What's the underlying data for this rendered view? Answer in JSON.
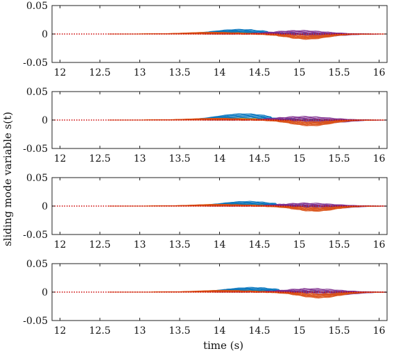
{
  "chart_data": {
    "type": "line",
    "layout": "4 stacked subplots sharing the same axes",
    "xlabel": "time (s)",
    "ylabel": "sliding mode variable s(t)",
    "xlim": [
      11.9,
      16.1
    ],
    "ylim": [
      -0.05,
      0.05
    ],
    "xticks": [
      12,
      12.5,
      13,
      13.5,
      14,
      14.5,
      15,
      15.5,
      16
    ],
    "xtick_labels": [
      "12",
      "12.5",
      "13",
      "13.5",
      "14",
      "14.5",
      "15",
      "15.5",
      "16"
    ],
    "yticks": [
      0.05,
      0,
      -0.05
    ],
    "ytick_labels": [
      "0.05",
      "0",
      "-0.05"
    ],
    "grid": false,
    "legend": "none",
    "series_colors": [
      "#0072BD",
      "#D95319",
      "#EDB120",
      "#7E2F8E",
      "#77AC30"
    ],
    "subplots": [
      {
        "index": 1,
        "description_values": {
          "blue_peak": {
            "x": 14.5,
            "y": 0.008
          },
          "orange_trough": {
            "x": 15.1,
            "y": -0.009
          },
          "purple_range": [
            -0.004,
            0.006
          ]
        }
      },
      {
        "index": 2,
        "description_values": {
          "blue_peak": {
            "x": 14.55,
            "y": 0.011
          },
          "orange_trough": {
            "x": 15.2,
            "y": -0.01
          },
          "purple_range": [
            -0.005,
            0.006
          ]
        }
      },
      {
        "index": 3,
        "description_values": {
          "blue_peak": {
            "x": 14.6,
            "y": 0.008
          },
          "orange_trough": {
            "x": 15.25,
            "y": -0.009
          },
          "purple_range": [
            -0.004,
            0.005
          ]
        }
      },
      {
        "index": 4,
        "description_values": {
          "blue_peak": {
            "x": 14.65,
            "y": 0.008
          },
          "orange_trough": {
            "x": 15.2,
            "y": -0.01
          },
          "purple_range": [
            -0.005,
            0.006
          ]
        }
      }
    ]
  }
}
